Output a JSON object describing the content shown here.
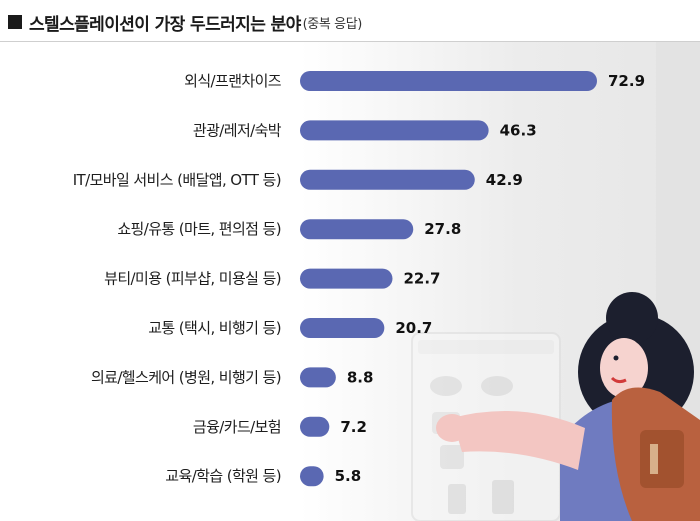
{
  "header": {
    "title": "스텔스플레이션이 가장 두드러지는 분야",
    "subtitle": "(중복 응답)"
  },
  "colors": {
    "bar": "#5a68b2",
    "text": "#1e1e1e",
    "value": "#111111"
  },
  "illustration": {
    "name": "woman-with-backpack"
  },
  "chart_data": {
    "type": "bar",
    "orientation": "horizontal",
    "title": "스텔스플레이션이 가장 두드러지는 분야",
    "subtitle": "(중복 응답)",
    "categories": [
      "외식/프랜차이즈",
      "관광/레저/숙박",
      "IT/모바일 서비스 (배달앱, OTT 등)",
      "쇼핑/유통 (마트, 편의점 등)",
      "뷰티/미용 (피부샵, 미용실 등)",
      "교통 (택시, 비행기 등)",
      "의료/헬스케어 (병원, 비행기 등)",
      "금융/카드/보험",
      "교육/학습 (학원 등)"
    ],
    "values": [
      72.9,
      46.3,
      42.9,
      27.8,
      22.7,
      20.7,
      8.8,
      7.2,
      5.8
    ],
    "value_labels": [
      "72.9",
      "46.3",
      "42.9",
      "27.8",
      "22.7",
      "20.7",
      "8.8",
      "7.2",
      "5.8"
    ],
    "xlim": [
      0,
      100
    ],
    "grid": false,
    "legend": "none"
  }
}
